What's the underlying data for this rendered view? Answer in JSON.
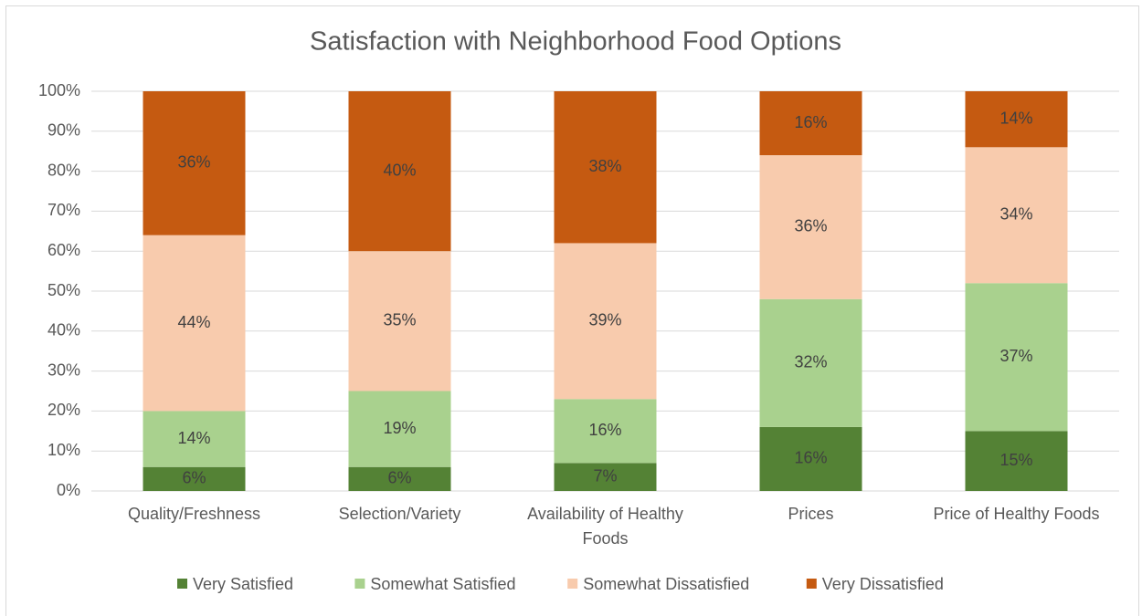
{
  "chart_data": {
    "type": "stacked_bar",
    "title": "Satisfaction with Neighborhood Food Options",
    "categories": [
      "Quality/Freshness",
      "Selection/Variety",
      "Availability of Healthy Foods",
      "Prices",
      "Price of Healthy Foods"
    ],
    "series": [
      {
        "name": "Very Satisfied",
        "color": "#548235",
        "values": [
          6,
          6,
          7,
          16,
          15
        ],
        "value_labels": [
          "6%",
          "6%",
          "7%",
          "16%",
          "15%"
        ]
      },
      {
        "name": "Somewhat Satisfied",
        "color": "#a9d18e",
        "values": [
          14,
          19,
          16,
          32,
          37
        ],
        "value_labels": [
          "14%",
          "19%",
          "16%",
          "32%",
          "37%"
        ]
      },
      {
        "name": "Somewhat Dissatisfied",
        "color": "#f8cbad",
        "values": [
          44,
          35,
          39,
          36,
          34
        ],
        "value_labels": [
          "44%",
          "35%",
          "39%",
          "36%",
          "34%"
        ]
      },
      {
        "name": "Very Dissatisfied",
        "color": "#c55a11",
        "values": [
          36,
          40,
          38,
          16,
          14
        ],
        "value_labels": [
          "36%",
          "40%",
          "38%",
          "16%",
          "14%"
        ]
      }
    ],
    "ylim": [
      0,
      100
    ],
    "yticks": [
      {
        "value": 0,
        "label": "0%"
      },
      {
        "value": 10,
        "label": "10%"
      },
      {
        "value": 20,
        "label": "20%"
      },
      {
        "value": 30,
        "label": "30%"
      },
      {
        "value": 40,
        "label": "40%"
      },
      {
        "value": 50,
        "label": "50%"
      },
      {
        "value": 60,
        "label": "60%"
      },
      {
        "value": 70,
        "label": "70%"
      },
      {
        "value": 80,
        "label": "80%"
      },
      {
        "value": 90,
        "label": "90%"
      },
      {
        "value": 100,
        "label": "100%"
      }
    ],
    "grid": true,
    "legend": "bottom"
  }
}
